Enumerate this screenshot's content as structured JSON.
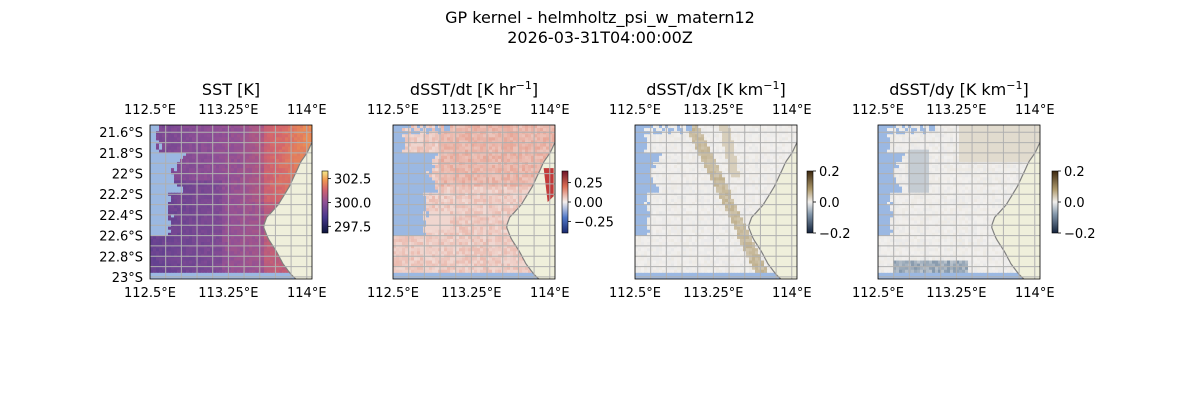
{
  "figure": {
    "title_line1": "GP kernel - helmholtz_psi_w_matern12",
    "title_line2": "2026-03-31T04:00:00Z"
  },
  "chart_data": [
    {
      "type": "heatmap",
      "title": "SST [K]",
      "title_base": "SST [K]",
      "title_sup": "",
      "title_end": "",
      "x_ticks": [
        "112.5°E",
        "113.25°E",
        "114°E"
      ],
      "x_tick_values": [
        112.5,
        113.25,
        114.0
      ],
      "y_ticks": [
        "21.6°S",
        "21.8°S",
        "22°S",
        "22.2°S",
        "22.4°S",
        "22.6°S",
        "22.8°S",
        "23°S"
      ],
      "y_tick_values": [
        -21.6,
        -21.8,
        -22.0,
        -22.2,
        -22.4,
        -22.6,
        -22.8,
        -23.0
      ],
      "xlim": [
        112.5,
        114.05
      ],
      "ylim": [
        -23.02,
        -21.53
      ],
      "colorbar": {
        "cmap": "thermal",
        "ticks": [
          "302.5",
          "300.0",
          "297.5"
        ],
        "tick_values": [
          302.5,
          300.0,
          297.5
        ],
        "range": [
          296.8,
          303.3
        ]
      },
      "field": "sst"
    },
    {
      "type": "heatmap",
      "title": "dSST/dt [K hr−1]",
      "title_base": "dSST/dt [K hr",
      "title_sup": "−1",
      "title_end": "]",
      "x_ticks": [
        "112.5°E",
        "113.25°E",
        "114°E"
      ],
      "x_tick_values": [
        112.5,
        113.25,
        114.0
      ],
      "y_ticks": [],
      "y_tick_values": [],
      "xlim": [
        112.5,
        114.05
      ],
      "ylim": [
        -23.02,
        -21.53
      ],
      "colorbar": {
        "cmap": "balance",
        "ticks": [
          "0.25",
          "0.00",
          "−0.25"
        ],
        "tick_values": [
          0.25,
          0.0,
          -0.25
        ],
        "range": [
          -0.4,
          0.4
        ]
      },
      "field": "dt"
    },
    {
      "type": "heatmap",
      "title": "dSST/dx [K km−1]",
      "title_base": "dSST/dx [K km",
      "title_sup": "−1",
      "title_end": "]",
      "x_ticks": [
        "112.5°E",
        "113.25°E",
        "114°E"
      ],
      "x_tick_values": [
        112.5,
        113.25,
        114.0
      ],
      "y_ticks": [],
      "y_tick_values": [],
      "xlim": [
        112.5,
        114.05
      ],
      "ylim": [
        -23.02,
        -21.53
      ],
      "colorbar": {
        "cmap": "diff",
        "ticks": [
          "0.2",
          "0.0",
          "−0.2"
        ],
        "tick_values": [
          0.2,
          0.0,
          -0.2
        ],
        "range": [
          -0.2,
          0.2
        ]
      },
      "field": "dx"
    },
    {
      "type": "heatmap",
      "title": "dSST/dy [K km−1]",
      "title_base": "dSST/dy [K km",
      "title_sup": "−1",
      "title_end": "]",
      "x_ticks": [
        "112.5°E",
        "113.25°E",
        "114°E"
      ],
      "x_tick_values": [
        112.5,
        113.25,
        114.0
      ],
      "y_ticks": [],
      "y_tick_values": [],
      "xlim": [
        112.5,
        114.05
      ],
      "ylim": [
        -23.02,
        -21.53
      ],
      "colorbar": {
        "cmap": "diff",
        "ticks": [
          "0.2",
          "0.0",
          "−0.2"
        ],
        "tick_values": [
          0.2,
          0.0,
          -0.2
        ],
        "range": [
          -0.2,
          0.2
        ]
      },
      "field": "dy"
    }
  ],
  "map_style": {
    "ocean_mask_color": "#9bb8e2",
    "land_color": "#efefdb",
    "coast_color": "#808080",
    "grid_color": "#b0b0b0",
    "grid_lon_step": 0.15,
    "grid_lat_step": 0.1
  }
}
